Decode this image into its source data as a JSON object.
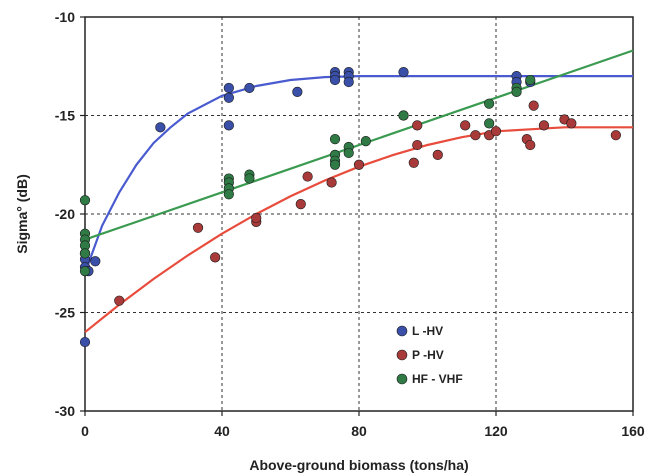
{
  "chart_data": {
    "type": "scatter",
    "title": "",
    "xlabel": "Above-ground biomass (tons/ha)",
    "ylabel": "Sigma° (dB)",
    "xlim": [
      0,
      160
    ],
    "ylim": [
      -30,
      -10
    ],
    "x_ticks": [
      0,
      40,
      80,
      120,
      160
    ],
    "y_ticks": [
      -10,
      -15,
      -20,
      -25,
      -30
    ],
    "x_tick_labels": [
      "0",
      "40",
      "80",
      "120",
      "160"
    ],
    "y_tick_labels": [
      "-10",
      "-15",
      "-20",
      "-25",
      "-30"
    ],
    "grid": true,
    "legend_position": "bottom-right",
    "series": [
      {
        "name": "L -HV",
        "color": "#3a4fa8",
        "line_color": "#4a5bd0",
        "points": [
          [
            0,
            -26.5
          ],
          [
            0,
            -22.0
          ],
          [
            0,
            -22.3
          ],
          [
            0,
            -22.7
          ],
          [
            1,
            -22.9
          ],
          [
            3,
            -22.4
          ],
          [
            22,
            -15.6
          ],
          [
            42,
            -13.6
          ],
          [
            42,
            -14.1
          ],
          [
            42,
            -15.5
          ],
          [
            48,
            -13.6
          ],
          [
            62,
            -13.8
          ],
          [
            73,
            -12.8
          ],
          [
            73,
            -13.0
          ],
          [
            73,
            -13.2
          ],
          [
            77,
            -12.8
          ],
          [
            77,
            -13.0
          ],
          [
            77,
            -13.3
          ],
          [
            93,
            -12.8
          ],
          [
            126,
            -13.0
          ],
          [
            126,
            -13.3
          ],
          [
            130,
            -13.3
          ]
        ],
        "fit": [
          [
            0,
            -23.0
          ],
          [
            5,
            -20.6
          ],
          [
            10,
            -18.9
          ],
          [
            15,
            -17.5
          ],
          [
            20,
            -16.4
          ],
          [
            25,
            -15.6
          ],
          [
            30,
            -14.9
          ],
          [
            40,
            -14.0
          ],
          [
            50,
            -13.5
          ],
          [
            60,
            -13.2
          ],
          [
            70,
            -13.05
          ],
          [
            80,
            -13.0
          ],
          [
            100,
            -13.0
          ],
          [
            120,
            -13.0
          ],
          [
            140,
            -13.0
          ],
          [
            160,
            -13.0
          ]
        ]
      },
      {
        "name": "P -HV",
        "color": "#a83a3a",
        "line_color": "#e84c3c",
        "points": [
          [
            10,
            -24.4
          ],
          [
            33,
            -20.7
          ],
          [
            38,
            -22.2
          ],
          [
            50,
            -20.4
          ],
          [
            50,
            -20.2
          ],
          [
            63,
            -19.5
          ],
          [
            65,
            -18.1
          ],
          [
            72,
            -18.4
          ],
          [
            80,
            -17.5
          ],
          [
            93,
            -15.0
          ],
          [
            96,
            -17.4
          ],
          [
            97,
            -16.5
          ],
          [
            97,
            -15.5
          ],
          [
            103,
            -17.0
          ],
          [
            111,
            -15.5
          ],
          [
            114,
            -16.0
          ],
          [
            118,
            -16.0
          ],
          [
            120,
            -15.8
          ],
          [
            129,
            -16.2
          ],
          [
            130,
            -16.5
          ],
          [
            131,
            -14.5
          ],
          [
            134,
            -15.5
          ],
          [
            140,
            -15.2
          ],
          [
            142,
            -15.4
          ],
          [
            155,
            -16.0
          ]
        ],
        "fit": [
          [
            0,
            -26.0
          ],
          [
            10,
            -24.6
          ],
          [
            20,
            -23.3
          ],
          [
            30,
            -22.1
          ],
          [
            40,
            -21.0
          ],
          [
            50,
            -20.0
          ],
          [
            60,
            -19.1
          ],
          [
            70,
            -18.3
          ],
          [
            80,
            -17.6
          ],
          [
            90,
            -17.0
          ],
          [
            100,
            -16.5
          ],
          [
            110,
            -16.1
          ],
          [
            120,
            -15.8
          ],
          [
            130,
            -15.7
          ],
          [
            140,
            -15.6
          ],
          [
            150,
            -15.6
          ],
          [
            160,
            -15.6
          ]
        ]
      },
      {
        "name": "HF - VHF",
        "color": "#2f7a45",
        "line_color": "#3a9a50",
        "points": [
          [
            0,
            -19.3
          ],
          [
            0,
            -21.0
          ],
          [
            0,
            -21.3
          ],
          [
            0,
            -21.6
          ],
          [
            0,
            -22.0
          ],
          [
            0,
            -22.9
          ],
          [
            42,
            -18.2
          ],
          [
            42,
            -18.4
          ],
          [
            42,
            -18.7
          ],
          [
            42,
            -19.0
          ],
          [
            48,
            -18.0
          ],
          [
            48,
            -18.2
          ],
          [
            73,
            -16.2
          ],
          [
            73,
            -17.0
          ],
          [
            73,
            -17.3
          ],
          [
            73,
            -17.5
          ],
          [
            77,
            -16.6
          ],
          [
            77,
            -16.9
          ],
          [
            82,
            -16.3
          ],
          [
            93,
            -15.0
          ],
          [
            118,
            -14.4
          ],
          [
            118,
            -15.4
          ],
          [
            126,
            -13.6
          ],
          [
            126,
            -13.8
          ],
          [
            130,
            -13.2
          ]
        ],
        "fit": [
          [
            0,
            -21.3
          ],
          [
            160,
            -11.7
          ]
        ]
      }
    ]
  }
}
